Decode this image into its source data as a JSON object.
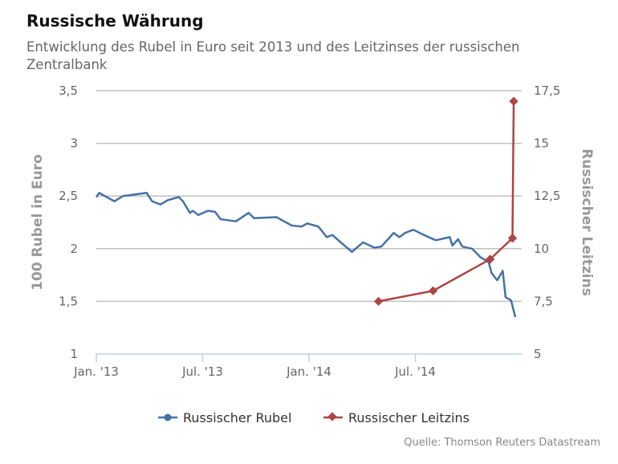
{
  "title": "Russische Währung",
  "subtitle": "Entwicklung des Rubel in Euro seit 2013 und des Leitzinses der russischen Zentralbank",
  "source": "Quelle: Thomson Reuters Datastream",
  "colors": {
    "rubel": "#4572a7",
    "leitzins": "#aa4643",
    "grid": "#c0c0c0"
  },
  "chart_data": {
    "type": "line",
    "title": "Russische Währung",
    "x_unit": "months since Jan. 2013",
    "xlim": [
      0,
      24
    ],
    "x_ticks": [
      {
        "x": 0,
        "label": "Jan. '13"
      },
      {
        "x": 6,
        "label": "Jul. '13"
      },
      {
        "x": 12,
        "label": "Jan. '14"
      },
      {
        "x": 18,
        "label": "Jul. '14"
      }
    ],
    "ylabel": "100 Rubel in Euro",
    "ylim": [
      1,
      3.5
    ],
    "y_ticks": [
      "1",
      "1,5",
      "2",
      "2,5",
      "3",
      "3,5"
    ],
    "y2label": "Russischer Leitzins",
    "y2lim": [
      5,
      17.5
    ],
    "y2_ticks": [
      "5",
      "7,5",
      "10",
      "12,5",
      "15",
      "17,5"
    ],
    "grid": true,
    "legend_position": "bottom-center",
    "series": [
      {
        "name": "Russischer Rubel",
        "axis": "left",
        "x": [
          0,
          0.16,
          1.02,
          1.5,
          2.84,
          3.15,
          3.62,
          4.02,
          4.65,
          4.89,
          5.28,
          5.44,
          5.75,
          6.3,
          6.7,
          7.01,
          7.88,
          8.59,
          8.9,
          10.17,
          10.48,
          11.03,
          11.58,
          11.9,
          12.53,
          13.0,
          13.32,
          13.79,
          14.42,
          15.05,
          15.68,
          16.08,
          16.78,
          17.1,
          17.42,
          17.89,
          18.36,
          19.15,
          19.94,
          20.09,
          20.41,
          20.65,
          21.2,
          21.67,
          22.14,
          22.3,
          22.62,
          22.93,
          23.09,
          23.4,
          23.64
        ],
        "y": [
          2.49,
          2.53,
          2.45,
          2.5,
          2.53,
          2.45,
          2.42,
          2.46,
          2.49,
          2.45,
          2.34,
          2.36,
          2.32,
          2.36,
          2.35,
          2.28,
          2.26,
          2.34,
          2.29,
          2.3,
          2.27,
          2.22,
          2.21,
          2.24,
          2.21,
          2.11,
          2.13,
          2.06,
          1.97,
          2.06,
          2.01,
          2.02,
          2.15,
          2.11,
          2.15,
          2.18,
          2.14,
          2.08,
          2.11,
          2.03,
          2.09,
          2.02,
          2.0,
          1.92,
          1.87,
          1.77,
          1.7,
          1.79,
          1.54,
          1.51,
          1.35
        ]
      },
      {
        "name": "Russischer Leitzins",
        "axis": "right",
        "x": [
          15.92,
          19.0,
          22.22,
          23.48,
          23.55
        ],
        "y": [
          7.5,
          8.0,
          9.5,
          10.5,
          17.0
        ]
      }
    ]
  }
}
